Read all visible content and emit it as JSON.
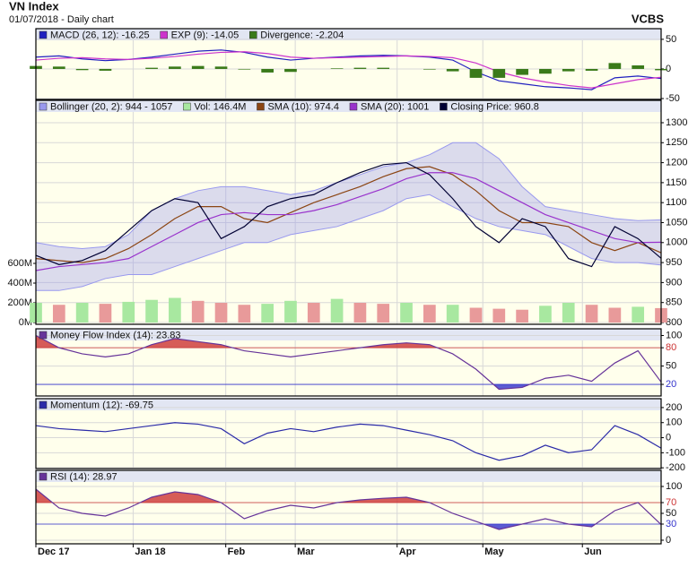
{
  "chart_data": [
    {
      "type": "line",
      "title": "VN Index",
      "subtitle": "01/07/2018 - Daily chart",
      "source": "VCBS",
      "x": [
        0,
        1,
        2,
        3,
        4,
        5,
        6,
        7,
        8,
        9,
        10,
        11,
        12,
        13,
        14,
        15,
        16,
        17,
        18,
        19,
        20,
        21,
        22,
        23,
        24,
        25,
        26,
        27
      ],
      "xlim": [
        0,
        27
      ],
      "ylim": [
        -51.5,
        68
      ],
      "yticks": [
        50,
        0,
        -50
      ],
      "series": [
        {
          "name": "MACD (26, 12): -16.25",
          "color": "#1f1fbf",
          "type": "line",
          "values": [
            20,
            22,
            17,
            14,
            16,
            20,
            25,
            30,
            32,
            28,
            20,
            15,
            18,
            20,
            22,
            23,
            22,
            20,
            15,
            -5,
            -20,
            -25,
            -30,
            -32,
            -35,
            -15,
            -12,
            -16.25
          ]
        },
        {
          "name": "EXP (9): -14.05",
          "color": "#cc33cc",
          "type": "line",
          "values": [
            15,
            18,
            19,
            17,
            16,
            18,
            21,
            25,
            28,
            29,
            26,
            20,
            18,
            19,
            20,
            21,
            22,
            21,
            19,
            10,
            -5,
            -15,
            -22,
            -28,
            -32,
            -25,
            -18,
            -14.05
          ]
        },
        {
          "name": "Divergence: -2.204",
          "color": "#3a7a1a",
          "type": "bar",
          "values": [
            5,
            4,
            -2,
            -3,
            0,
            2,
            4,
            5,
            4,
            -1,
            -6,
            -5,
            0,
            1,
            2,
            2,
            0,
            -1,
            -4,
            -15,
            -15,
            -10,
            -8,
            -4,
            -3,
            10,
            6,
            -2.204
          ]
        }
      ]
    },
    {
      "type": "line",
      "x": [
        0,
        1,
        2,
        3,
        4,
        5,
        6,
        7,
        8,
        9,
        10,
        11,
        12,
        13,
        14,
        15,
        16,
        17,
        18,
        19,
        20,
        21,
        22,
        23,
        24,
        25,
        26,
        27
      ],
      "xlim": [
        0,
        27
      ],
      "ylim": [
        795.5,
        1356
      ],
      "yticks": [
        800,
        850,
        900,
        950,
        1000,
        1050,
        1100,
        1150,
        1200,
        1250,
        1300
      ],
      "y2lim": [
        -18,
        2254
      ],
      "y2ticks": [
        {
          "value": 0,
          "label": "0M"
        },
        {
          "value": 200,
          "label": "200M"
        },
        {
          "value": 400,
          "label": "400M"
        },
        {
          "value": 600,
          "label": "600M"
        }
      ],
      "series": [
        {
          "name": "Bollinger (20, 2): 944 - 1057",
          "color": "#9999ee",
          "type": "band",
          "upper": [
            1000,
            990,
            985,
            990,
            1020,
            1080,
            1110,
            1130,
            1140,
            1140,
            1130,
            1120,
            1130,
            1150,
            1170,
            1190,
            1200,
            1220,
            1250,
            1250,
            1210,
            1140,
            1090,
            1080,
            1070,
            1060,
            1055,
            1057
          ],
          "lower": [
            880,
            880,
            890,
            910,
            920,
            920,
            940,
            960,
            980,
            1000,
            1000,
            1020,
            1030,
            1040,
            1060,
            1080,
            1110,
            1120,
            1090,
            1060,
            1040,
            1030,
            1020,
            990,
            960,
            950,
            950,
            944
          ]
        },
        {
          "name": "Vol: 146.4M",
          "color": "#a8e8a0",
          "down_color": "#e89a9a",
          "type": "bar",
          "axis": "y2",
          "values": [
            200,
            180,
            200,
            190,
            210,
            230,
            250,
            220,
            200,
            180,
            190,
            220,
            200,
            240,
            200,
            190,
            200,
            180,
            180,
            150,
            140,
            130,
            170,
            200,
            180,
            150,
            160,
            146.4
          ]
        },
        {
          "name": "SMA (10): 974.4",
          "color": "#8b4513",
          "type": "line",
          "values": [
            960,
            955,
            950,
            960,
            985,
            1020,
            1060,
            1090,
            1090,
            1060,
            1050,
            1075,
            1100,
            1120,
            1140,
            1165,
            1185,
            1190,
            1170,
            1130,
            1080,
            1050,
            1050,
            1040,
            1000,
            980,
            1000,
            974.4
          ]
        },
        {
          "name": "SMA (20): 1001",
          "color": "#9933cc",
          "type": "line",
          "values": [
            930,
            940,
            945,
            950,
            960,
            990,
            1020,
            1050,
            1070,
            1075,
            1070,
            1070,
            1080,
            1095,
            1115,
            1135,
            1160,
            1175,
            1175,
            1160,
            1130,
            1100,
            1070,
            1050,
            1030,
            1010,
            1000,
            1001
          ]
        },
        {
          "name": "Closing Price: 960.8",
          "color": "#000033",
          "type": "line",
          "values": [
            968,
            945,
            955,
            980,
            1030,
            1080,
            1110,
            1100,
            1010,
            1040,
            1090,
            1110,
            1120,
            1150,
            1175,
            1195,
            1200,
            1170,
            1110,
            1040,
            1000,
            1060,
            1040,
            960,
            940,
            1040,
            1010,
            960.8
          ]
        }
      ]
    },
    {
      "type": "line",
      "x": [
        0,
        1,
        2,
        3,
        4,
        5,
        6,
        7,
        8,
        9,
        10,
        11,
        12,
        13,
        14,
        15,
        16,
        17,
        18,
        19,
        20,
        21,
        22,
        23,
        24,
        25,
        26,
        27
      ],
      "xlim": [
        0,
        27
      ],
      "ylim": [
        1,
        111
      ],
      "yticks": [
        100,
        80,
        50,
        20
      ],
      "hlines": [
        {
          "value": 80,
          "color": "#cc3333"
        },
        {
          "value": 20,
          "color": "#3333cc"
        }
      ],
      "series": [
        {
          "name": "Money Flow Index (14): 23.83",
          "color": "#663399",
          "type": "line",
          "values": [
            100,
            80,
            70,
            65,
            70,
            85,
            95,
            90,
            85,
            75,
            70,
            65,
            70,
            75,
            80,
            85,
            88,
            85,
            70,
            45,
            12,
            15,
            30,
            35,
            25,
            55,
            75,
            23.83
          ]
        }
      ]
    },
    {
      "type": "line",
      "x": [
        0,
        1,
        2,
        3,
        4,
        5,
        6,
        7,
        8,
        9,
        10,
        11,
        12,
        13,
        14,
        15,
        16,
        17,
        18,
        19,
        20,
        21,
        22,
        23,
        24,
        25,
        26,
        27
      ],
      "xlim": [
        0,
        27
      ],
      "ylim": [
        -205,
        259
      ],
      "yticks": [
        200,
        100,
        0,
        -100,
        -200
      ],
      "series": [
        {
          "name": "Momentum (12): -69.75",
          "color": "#2a2aa8",
          "type": "line",
          "values": [
            80,
            60,
            50,
            40,
            60,
            80,
            100,
            90,
            60,
            -40,
            30,
            60,
            40,
            70,
            90,
            80,
            50,
            20,
            -20,
            -100,
            -150,
            -120,
            -50,
            -100,
            -80,
            80,
            20,
            -69.75
          ]
        }
      ]
    },
    {
      "type": "line",
      "x": [
        0,
        1,
        2,
        3,
        4,
        5,
        6,
        7,
        8,
        9,
        10,
        11,
        12,
        13,
        14,
        15,
        16,
        17,
        18,
        19,
        20,
        21,
        22,
        23,
        24,
        25,
        26,
        27
      ],
      "xlim": [
        0,
        27
      ],
      "ylim": [
        -6.7,
        130
      ],
      "yticks": [
        100,
        70,
        50,
        30,
        0
      ],
      "xticks": [
        {
          "value": 0,
          "label": "Dec 17"
        },
        {
          "value": 4.2,
          "label": "Jan 18"
        },
        {
          "value": 8.2,
          "label": "Feb"
        },
        {
          "value": 11.2,
          "label": "Mar"
        },
        {
          "value": 15.6,
          "label": "Apr"
        },
        {
          "value": 19.3,
          "label": "May"
        },
        {
          "value": 23.6,
          "label": "Jun"
        }
      ],
      "hlines": [
        {
          "value": 70,
          "color": "#cc3333"
        },
        {
          "value": 30,
          "color": "#3333cc"
        }
      ],
      "series": [
        {
          "name": "RSI (14): 28.97",
          "color": "#663399",
          "type": "line",
          "values": [
            95,
            60,
            50,
            45,
            60,
            80,
            90,
            85,
            70,
            40,
            55,
            65,
            60,
            70,
            75,
            78,
            80,
            70,
            50,
            35,
            20,
            30,
            40,
            30,
            25,
            55,
            70,
            28.97
          ]
        }
      ]
    }
  ]
}
